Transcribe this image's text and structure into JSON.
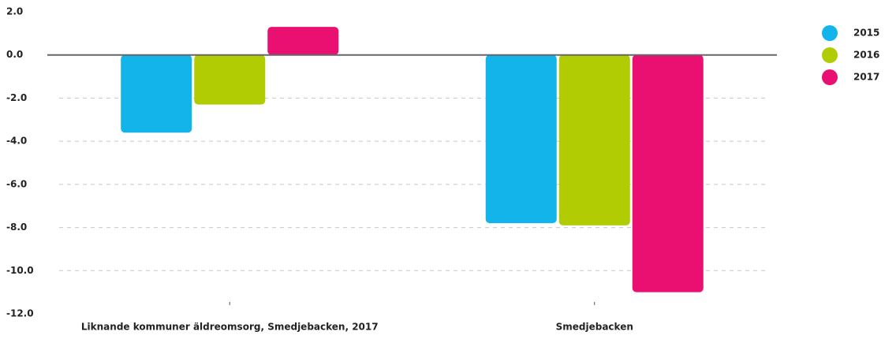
{
  "chart_data": {
    "type": "bar",
    "categories": [
      "Liknande kommuner äldreomsorg, Smedjebacken, 2017",
      "Smedjebacken"
    ],
    "series": [
      {
        "name": "2015",
        "color": "#12b4ea",
        "values": [
          -3.6,
          -7.8
        ]
      },
      {
        "name": "2016",
        "color": "#b2cc04",
        "values": [
          -2.3,
          -7.9
        ]
      },
      {
        "name": "2017",
        "color": "#ea1072",
        "values": [
          1.3,
          -11.0
        ]
      }
    ],
    "ylim": [
      -12,
      2
    ],
    "yticks": [
      {
        "value": -12,
        "label": "-12.0"
      },
      {
        "value": -10,
        "label": "-10.0"
      },
      {
        "value": -8,
        "label": "-8.0"
      },
      {
        "value": -6,
        "label": "-6.0"
      },
      {
        "value": -4,
        "label": "-4.0"
      },
      {
        "value": -2,
        "label": "-2.0"
      },
      {
        "value": 0,
        "label": "0.0"
      },
      {
        "value": 2,
        "label": "2.0"
      }
    ],
    "grid": true,
    "legend": "right"
  }
}
